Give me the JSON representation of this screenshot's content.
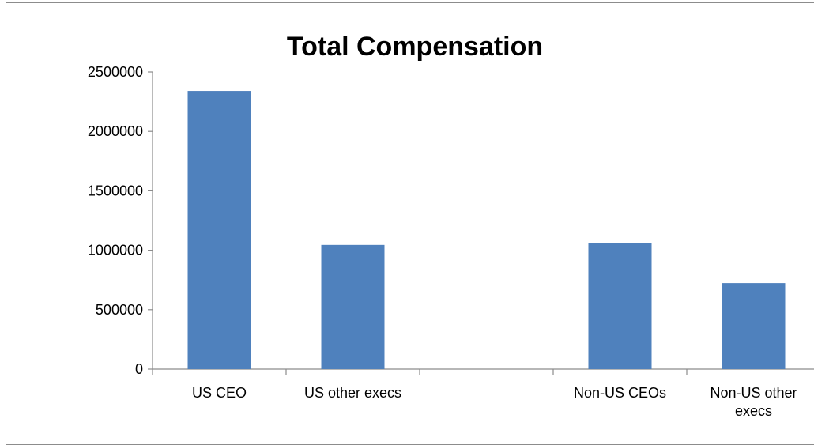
{
  "chart_data": {
    "type": "bar",
    "title": "Total Compensation",
    "categories": [
      [
        "US CEO"
      ],
      [
        "US other execs"
      ],
      [
        ""
      ],
      [
        "Non-US CEOs"
      ],
      [
        "Non-US other",
        "execs"
      ]
    ],
    "values": [
      2340000,
      1045000,
      null,
      1063000,
      724000
    ],
    "ylim": [
      0,
      2500000
    ],
    "yticks": [
      "0",
      "500000",
      "1000000",
      "1500000",
      "2000000",
      "2500000"
    ],
    "xlabel": "",
    "ylabel": "",
    "grid": false,
    "legend": "none",
    "bar_color": "#4F81BD"
  }
}
